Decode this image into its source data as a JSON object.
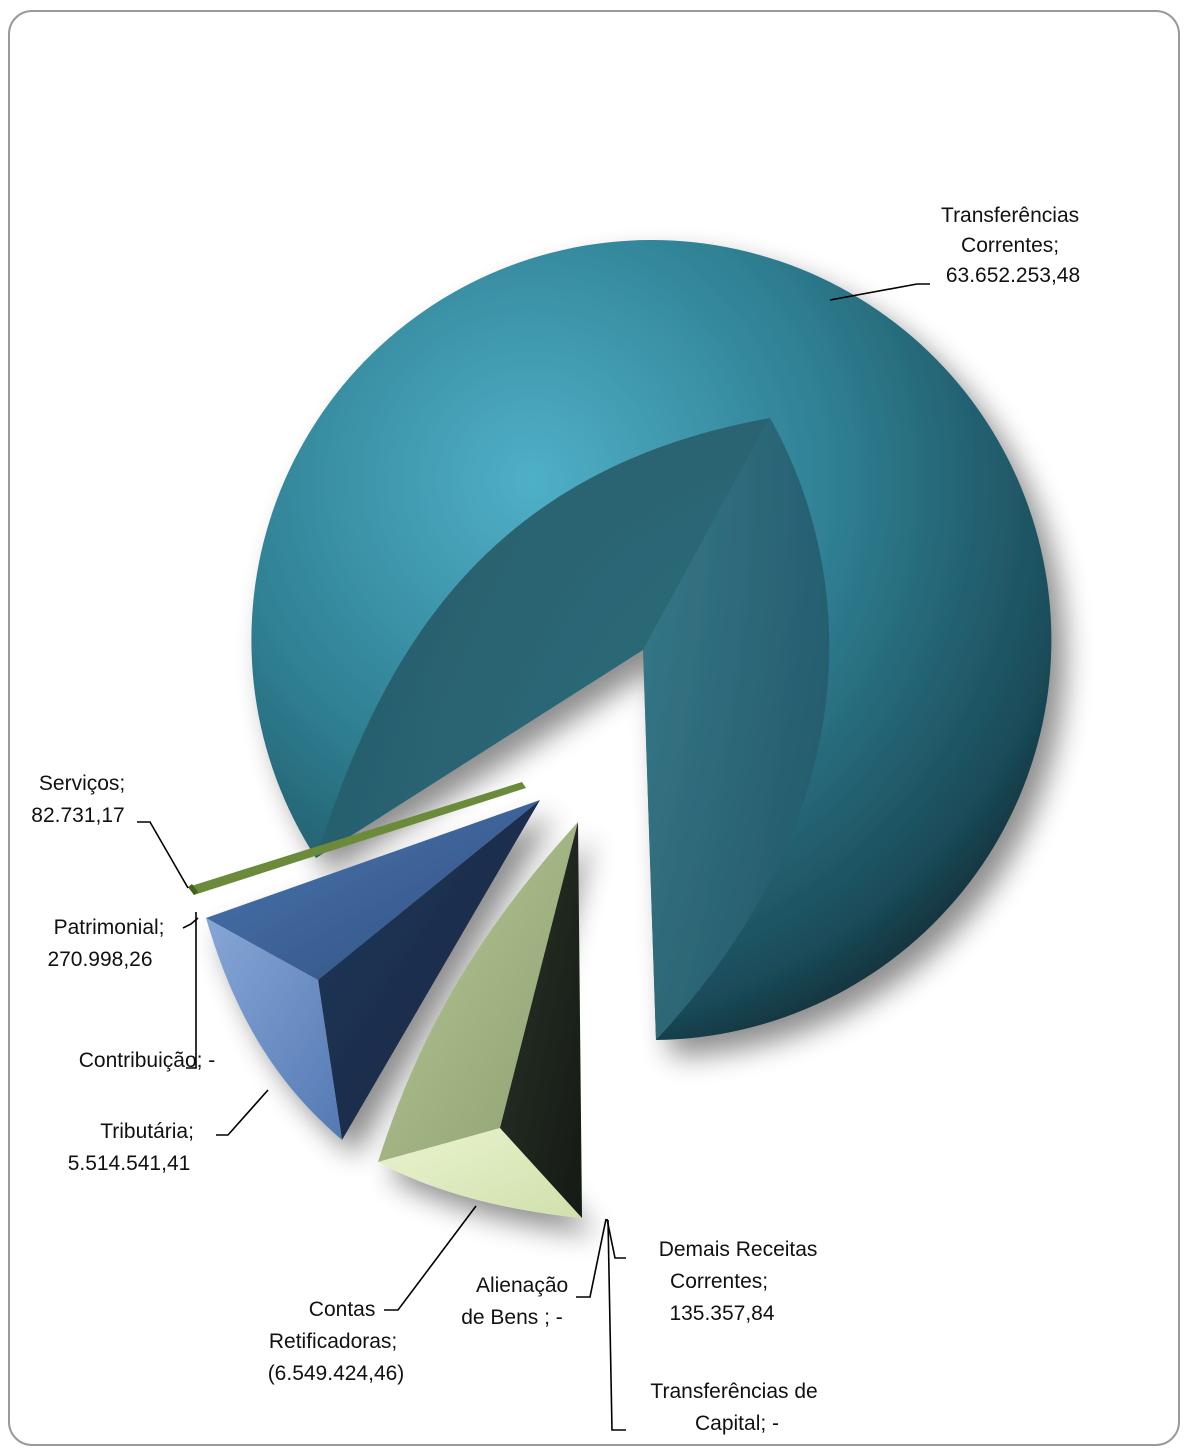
{
  "chart_data": {
    "type": "pie",
    "title": "",
    "style": "exploded 3D pie",
    "legend": "none",
    "slices": [
      {
        "category": "Transferências Correntes",
        "value": 63652253.48,
        "label_lines": [
          "Transferências",
          "Correntes;",
          "63.652.253,48"
        ],
        "color": "#2f7f92"
      },
      {
        "category": "Serviços",
        "value": 82731.17,
        "label_lines": [
          "Serviços;",
          "82.731,17"
        ],
        "color": "#6b8a3a"
      },
      {
        "category": "Patrimonial",
        "value": 270998.26,
        "label_lines": [
          "Patrimonial;",
          "270.998,26"
        ],
        "color": "#4e7a52"
      },
      {
        "category": "Contribuição",
        "value": 0,
        "label_lines": [
          "Contribuição;  -"
        ],
        "color": "#3a5f8f"
      },
      {
        "category": "Tributária",
        "value": 5514541.41,
        "label_lines": [
          "Tributária;",
          "5.514.541,41"
        ],
        "color": "#3f649b"
      },
      {
        "category": "Contas Retificadoras",
        "value": -6549424.46,
        "label_lines": [
          "Contas",
          "Retificadoras;",
          "(6.549.424,46)"
        ],
        "color": "#a7b98a"
      },
      {
        "category": "Alienação de Bens",
        "value": 0,
        "label_lines": [
          "Alienação",
          "de Bens ;  -"
        ],
        "color": "#6e7a5a"
      },
      {
        "category": "Demais Receitas Correntes",
        "value": 135357.84,
        "label_lines": [
          "Demais Receitas",
          "Correntes;",
          "135.357,84"
        ],
        "color": "#1f2a22"
      },
      {
        "category": "Transferências de Capital",
        "value": 0,
        "label_lines": [
          "Transferências de",
          "Capital;  -"
        ],
        "color": "#2b3a33"
      }
    ]
  }
}
